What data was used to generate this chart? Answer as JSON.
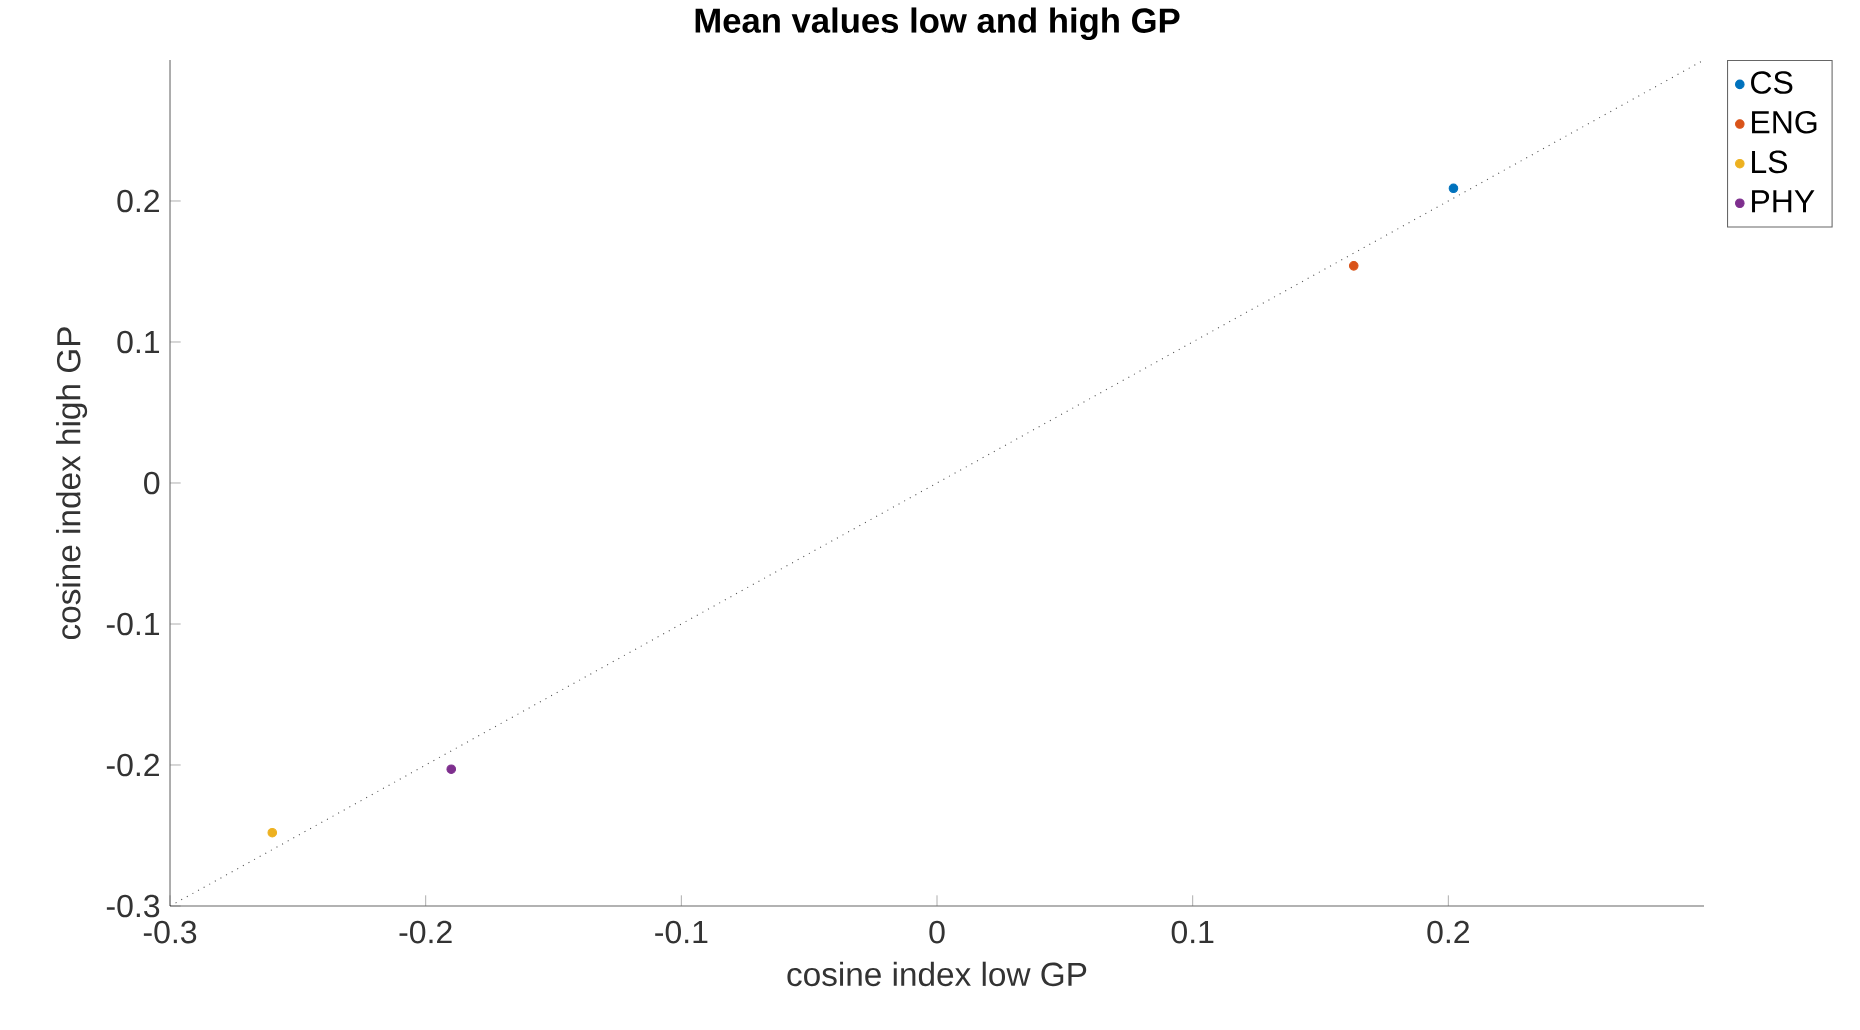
{
  "chart_data": {
    "type": "scatter",
    "title": "Mean values low and high GP",
    "xlabel": "cosine index low GP",
    "ylabel": "cosine index high GP",
    "xlim": [
      -0.3,
      0.3
    ],
    "ylim": [
      -0.3,
      0.3
    ],
    "xticks": [
      -0.3,
      -0.2,
      -0.1,
      0,
      0.1,
      0.2
    ],
    "yticks": [
      -0.3,
      -0.2,
      -0.1,
      0,
      0.1,
      0.2
    ],
    "legend": "top right",
    "grid": false,
    "series": [
      {
        "name": "CS",
        "color": "#0072bd",
        "marker": "circle",
        "x": [
          0.202
        ],
        "values": [
          0.209
        ]
      },
      {
        "name": "ENG",
        "color": "#d95319",
        "marker": "circle",
        "x": [
          0.163
        ],
        "values": [
          0.154
        ]
      },
      {
        "name": "LS",
        "color": "#edb120",
        "marker": "circle",
        "x": [
          -0.26
        ],
        "values": [
          -0.248
        ]
      },
      {
        "name": "PHY",
        "color": "#7e2f8e",
        "marker": "circle",
        "x": [
          -0.19
        ],
        "values": [
          -0.203
        ]
      },
      {
        "type": "line",
        "color": "#505050",
        "line_style": "dotted",
        "x": [
          -0.3,
          0.3
        ],
        "values": [
          -0.3,
          0.3
        ]
      }
    ]
  }
}
